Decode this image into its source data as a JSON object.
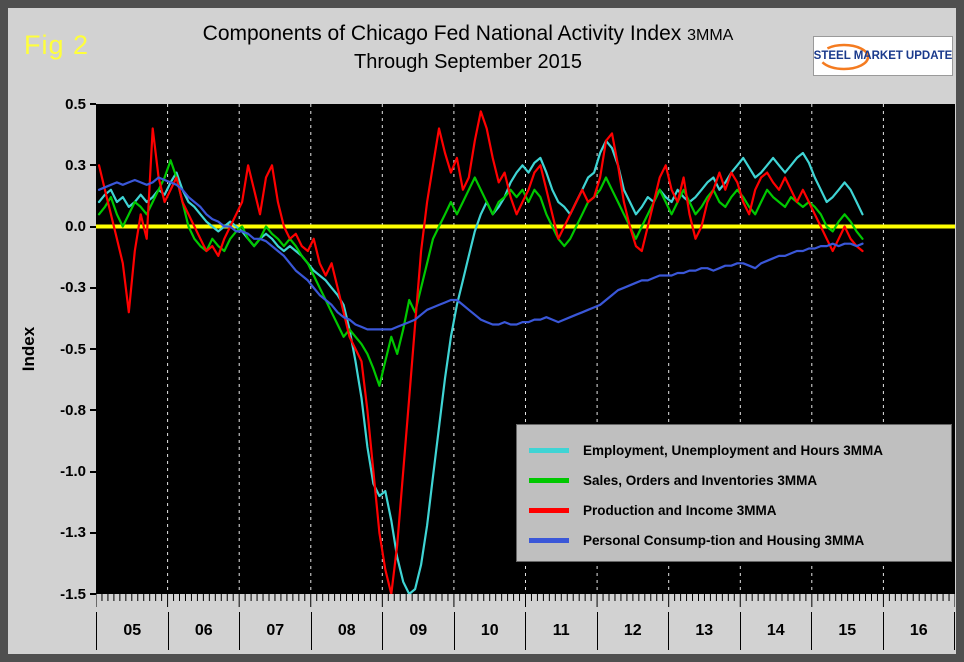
{
  "figure": {
    "fig_label": "Fig 2"
  },
  "header": {
    "title_main": "Components of Chicago Fed National Activity Index",
    "title_suffix": "3MMA",
    "title_sub": "Through September 2015"
  },
  "logo": {
    "word1": "STEEL",
    "word2": "MARKET",
    "word3": "UPDATE",
    "swoosh_color": "#F47B20",
    "text_color": "#1A3A8C"
  },
  "axis": {
    "y_label": "Index",
    "y_ticks": [
      {
        "label": "0.5",
        "value": 0.5
      },
      {
        "label": "0.3",
        "value": 0.25
      },
      {
        "label": "0.0",
        "value": 0.0
      },
      {
        "label": "-0.3",
        "value": -0.25
      },
      {
        "label": "-0.5",
        "value": -0.5
      },
      {
        "label": "-0.8",
        "value": -0.75
      },
      {
        "label": "-1.0",
        "value": -1.0
      },
      {
        "label": "-1.3",
        "value": -1.25
      },
      {
        "label": "-1.5",
        "value": -1.5
      }
    ],
    "x_years": [
      "05",
      "06",
      "07",
      "08",
      "09",
      "10",
      "11",
      "12",
      "13",
      "14",
      "15",
      "16"
    ]
  },
  "legend": [
    {
      "label": "Employment, Unemployment and Hours 3MMA",
      "color": "#3FD4D4"
    },
    {
      "label": "Sales, Orders and Inventories 3MMA",
      "color": "#00C800"
    },
    {
      "label": "Production and Income 3MMA",
      "color": "#FF0000"
    },
    {
      "label": "Personal Consump-tion and Housing 3MMA",
      "color": "#3A57D8"
    }
  ],
  "chart_data": {
    "type": "line",
    "title": "Components of Chicago Fed National Activity Index 3MMA Through September 2015",
    "ylabel": "Index",
    "ylim": [
      -1.5,
      0.5
    ],
    "grid": "vertical-dashed-white-on-black",
    "zero_line_color": "#FFFF00",
    "x_start": "2005-01",
    "x_end": "2015-09",
    "x_unit": "month",
    "x_axis_span_years": [
      "2005",
      "2016"
    ],
    "legend_position": "inside-lower-right",
    "series": [
      {
        "name": "Employment, Unemployment and Hours 3MMA",
        "color": "#3FD4D4",
        "values": [
          0.1,
          0.13,
          0.15,
          0.1,
          0.12,
          0.08,
          0.1,
          0.13,
          0.1,
          0.12,
          0.15,
          0.13,
          0.18,
          0.22,
          0.15,
          0.1,
          0.08,
          0.05,
          0.02,
          0.0,
          -0.02,
          0.0,
          0.02,
          0.0,
          -0.02,
          -0.05,
          -0.08,
          -0.05,
          -0.03,
          -0.05,
          -0.08,
          -0.1,
          -0.08,
          -0.1,
          -0.12,
          -0.15,
          -0.18,
          -0.2,
          -0.22,
          -0.25,
          -0.28,
          -0.32,
          -0.42,
          -0.55,
          -0.7,
          -0.9,
          -1.05,
          -1.1,
          -1.08,
          -1.2,
          -1.35,
          -1.45,
          -1.5,
          -1.48,
          -1.38,
          -1.22,
          -1.02,
          -0.82,
          -0.62,
          -0.45,
          -0.32,
          -0.22,
          -0.12,
          -0.02,
          0.05,
          0.1,
          0.05,
          0.08,
          0.12,
          0.18,
          0.22,
          0.25,
          0.22,
          0.26,
          0.28,
          0.22,
          0.15,
          0.1,
          0.08,
          0.05,
          0.1,
          0.15,
          0.2,
          0.22,
          0.3,
          0.35,
          0.32,
          0.25,
          0.15,
          0.1,
          0.05,
          0.08,
          0.12,
          0.1,
          0.15,
          0.12,
          0.1,
          0.15,
          0.12,
          0.1,
          0.12,
          0.15,
          0.18,
          0.2,
          0.15,
          0.18,
          0.22,
          0.25,
          0.28,
          0.24,
          0.2,
          0.22,
          0.25,
          0.28,
          0.25,
          0.22,
          0.25,
          0.28,
          0.3,
          0.26,
          0.2,
          0.15,
          0.1,
          0.12,
          0.15,
          0.18,
          0.15,
          0.1,
          0.05
        ]
      },
      {
        "name": "Sales, Orders and Inventories 3MMA",
        "color": "#00C800",
        "values": [
          0.05,
          0.08,
          0.12,
          0.05,
          0.0,
          0.05,
          0.1,
          0.08,
          0.05,
          0.1,
          0.15,
          0.2,
          0.27,
          0.2,
          0.1,
          0.0,
          -0.05,
          -0.08,
          -0.1,
          -0.05,
          -0.08,
          -0.1,
          -0.05,
          -0.02,
          0.0,
          -0.05,
          -0.08,
          -0.05,
          0.0,
          -0.03,
          -0.05,
          -0.08,
          -0.05,
          -0.08,
          -0.12,
          -0.15,
          -0.2,
          -0.25,
          -0.3,
          -0.35,
          -0.4,
          -0.45,
          -0.42,
          -0.45,
          -0.48,
          -0.52,
          -0.58,
          -0.65,
          -0.55,
          -0.45,
          -0.52,
          -0.42,
          -0.3,
          -0.35,
          -0.25,
          -0.15,
          -0.05,
          0.0,
          0.05,
          0.1,
          0.05,
          0.1,
          0.15,
          0.2,
          0.15,
          0.1,
          0.05,
          0.1,
          0.12,
          0.15,
          0.12,
          0.15,
          0.1,
          0.15,
          0.12,
          0.05,
          0.0,
          -0.05,
          -0.08,
          -0.05,
          0.0,
          0.05,
          0.1,
          0.12,
          0.15,
          0.2,
          0.15,
          0.1,
          0.05,
          0.0,
          -0.05,
          0.0,
          0.05,
          0.1,
          0.15,
          0.1,
          0.05,
          0.1,
          0.15,
          0.1,
          0.05,
          0.08,
          0.12,
          0.15,
          0.1,
          0.08,
          0.12,
          0.15,
          0.12,
          0.08,
          0.05,
          0.1,
          0.15,
          0.12,
          0.1,
          0.08,
          0.12,
          0.1,
          0.08,
          0.1,
          0.08,
          0.05,
          0.0,
          -0.02,
          0.02,
          0.05,
          0.02,
          -0.02,
          -0.05
        ]
      },
      {
        "name": "Production and Income 3MMA",
        "color": "#FF0000",
        "values": [
          0.25,
          0.15,
          0.05,
          -0.05,
          -0.15,
          -0.35,
          -0.1,
          0.05,
          -0.05,
          0.4,
          0.2,
          0.1,
          0.15,
          0.2,
          0.1,
          0.05,
          0.0,
          -0.05,
          -0.1,
          -0.08,
          -0.12,
          -0.05,
          0.0,
          0.05,
          0.1,
          0.25,
          0.15,
          0.05,
          0.2,
          0.25,
          0.1,
          0.0,
          -0.05,
          -0.03,
          -0.08,
          -0.1,
          -0.05,
          -0.15,
          -0.2,
          -0.15,
          -0.25,
          -0.35,
          -0.45,
          -0.5,
          -0.55,
          -0.75,
          -1.0,
          -1.25,
          -1.4,
          -1.5,
          -1.3,
          -1.0,
          -0.7,
          -0.4,
          -0.1,
          0.1,
          0.25,
          0.4,
          0.3,
          0.22,
          0.28,
          0.15,
          0.2,
          0.35,
          0.47,
          0.4,
          0.28,
          0.18,
          0.22,
          0.12,
          0.05,
          0.1,
          0.15,
          0.22,
          0.25,
          0.15,
          0.05,
          -0.05,
          0.0,
          0.05,
          0.1,
          0.15,
          0.1,
          0.12,
          0.2,
          0.35,
          0.38,
          0.25,
          0.1,
          0.0,
          -0.08,
          -0.1,
          0.0,
          0.1,
          0.2,
          0.25,
          0.15,
          0.1,
          0.2,
          0.05,
          -0.05,
          0.0,
          0.1,
          0.15,
          0.22,
          0.15,
          0.22,
          0.18,
          0.1,
          0.05,
          0.15,
          0.2,
          0.22,
          0.18,
          0.15,
          0.2,
          0.15,
          0.1,
          0.15,
          0.1,
          0.05,
          0.0,
          -0.05,
          -0.1,
          -0.05,
          0.0,
          -0.05,
          -0.08,
          -0.1
        ]
      },
      {
        "name": "Personal Consump-tion and Housing 3MMA",
        "color": "#3A57D8",
        "values": [
          0.15,
          0.16,
          0.17,
          0.18,
          0.17,
          0.18,
          0.19,
          0.18,
          0.17,
          0.18,
          0.2,
          0.19,
          0.18,
          0.17,
          0.15,
          0.12,
          0.1,
          0.08,
          0.05,
          0.03,
          0.02,
          0.0,
          0.0,
          -0.02,
          -0.02,
          -0.03,
          -0.05,
          -0.05,
          -0.06,
          -0.08,
          -0.1,
          -0.12,
          -0.15,
          -0.18,
          -0.2,
          -0.22,
          -0.25,
          -0.28,
          -0.3,
          -0.32,
          -0.35,
          -0.37,
          -0.38,
          -0.4,
          -0.41,
          -0.42,
          -0.42,
          -0.42,
          -0.42,
          -0.42,
          -0.41,
          -0.4,
          -0.39,
          -0.38,
          -0.36,
          -0.34,
          -0.33,
          -0.32,
          -0.31,
          -0.3,
          -0.3,
          -0.32,
          -0.34,
          -0.36,
          -0.38,
          -0.39,
          -0.4,
          -0.4,
          -0.39,
          -0.4,
          -0.4,
          -0.39,
          -0.39,
          -0.38,
          -0.38,
          -0.37,
          -0.38,
          -0.39,
          -0.38,
          -0.37,
          -0.36,
          -0.35,
          -0.34,
          -0.33,
          -0.32,
          -0.3,
          -0.28,
          -0.26,
          -0.25,
          -0.24,
          -0.23,
          -0.22,
          -0.22,
          -0.21,
          -0.2,
          -0.2,
          -0.2,
          -0.19,
          -0.19,
          -0.18,
          -0.18,
          -0.17,
          -0.17,
          -0.18,
          -0.17,
          -0.16,
          -0.16,
          -0.15,
          -0.15,
          -0.16,
          -0.17,
          -0.15,
          -0.14,
          -0.13,
          -0.12,
          -0.12,
          -0.11,
          -0.1,
          -0.1,
          -0.09,
          -0.09,
          -0.08,
          -0.08,
          -0.07,
          -0.08,
          -0.07,
          -0.07,
          -0.08,
          -0.07
        ]
      }
    ]
  }
}
